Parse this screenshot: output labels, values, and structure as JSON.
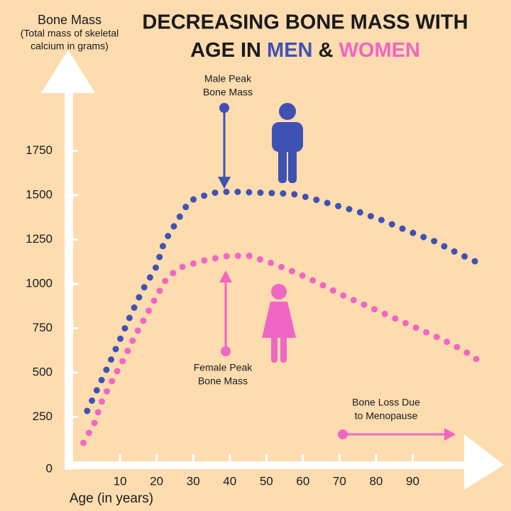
{
  "chart_data": {
    "type": "line",
    "title": "DECREASING BONE MASS WITH",
    "title_line2": "AGE IN",
    "title_joiner": "&",
    "ylabel": "Bone Mass",
    "ylabel_note": [
      "(Total mass of skeletal",
      "calcium in grams)"
    ],
    "xlabel": "Age (in years)",
    "xlim": [
      -4,
      113
    ],
    "xticks": [
      10,
      20,
      30,
      40,
      50,
      60,
      70,
      80,
      90
    ],
    "ylim": [
      0,
      2200
    ],
    "yticks": [
      0,
      250,
      500,
      750,
      1000,
      1250,
      1500,
      1750
    ],
    "series": [
      {
        "name": "MEN",
        "color": "#3f52b4",
        "x": [
          1,
          4,
          7,
          10,
          13,
          16,
          20,
          22,
          26,
          29,
          35,
          40,
          46,
          51,
          57,
          62,
          68,
          75,
          82,
          89,
          96,
          102,
          109
        ],
        "values": [
          284,
          416,
          548,
          688,
          828,
          960,
          1100,
          1232,
          1368,
          1468,
          1512,
          1520,
          1516,
          1512,
          1508,
          1484,
          1448,
          1408,
          1356,
          1296,
          1240,
          1176,
          1108
        ]
      },
      {
        "name": "WOMEN",
        "color": "#ef66c4",
        "x": [
          0,
          3,
          5,
          8,
          11,
          14,
          17,
          20,
          23,
          27,
          33,
          39,
          45,
          51,
          58,
          64,
          70,
          77,
          84,
          91,
          98,
          104,
          108
        ],
        "values": [
          104,
          216,
          336,
          460,
          576,
          704,
          816,
          932,
          1040,
          1096,
          1132,
          1156,
          1160,
          1120,
          1064,
          1008,
          944,
          880,
          816,
          752,
          688,
          624,
          568
        ]
      }
    ],
    "annotations": [
      {
        "text": [
          "Male Peak",
          "Bone Mass"
        ]
      },
      {
        "text": [
          "Female Peak",
          "Bone Mass"
        ]
      },
      {
        "text": [
          "Bone Loss Due",
          "to Menopause"
        ]
      }
    ]
  }
}
